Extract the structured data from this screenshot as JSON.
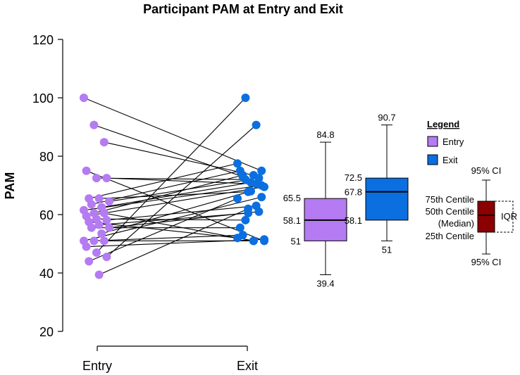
{
  "chart_data": {
    "type": "scatter",
    "title": "Participant PAM at Entry and Exit",
    "ylabel": "PAM",
    "xlabel": "",
    "ylim": [
      20,
      120
    ],
    "yticks": [
      20,
      40,
      60,
      80,
      100,
      120
    ],
    "categories": [
      "Entry",
      "Exit"
    ],
    "colors": {
      "entry": "#b57bf2",
      "exit": "#0b6fe0",
      "key": "#8b0000",
      "line": "#000000"
    },
    "pairs": [
      [
        100,
        75
      ],
      [
        90.7,
        73
      ],
      [
        84.8,
        73.5
      ],
      [
        75,
        51
      ],
      [
        72.5,
        72
      ],
      [
        72.5,
        70.5
      ],
      [
        65.5,
        77.5
      ],
      [
        65.5,
        67.8
      ],
      [
        64.5,
        72.5
      ],
      [
        63.5,
        75
      ],
      [
        62.5,
        71
      ],
      [
        61.5,
        70
      ],
      [
        60.5,
        73.5
      ],
      [
        60.5,
        51
      ],
      [
        59.5,
        69.5
      ],
      [
        58.5,
        58.1
      ],
      [
        58.1,
        63
      ],
      [
        57.5,
        52
      ],
      [
        56.5,
        60.5
      ],
      [
        55.5,
        61
      ],
      [
        55.5,
        55.5
      ],
      [
        53.5,
        68
      ],
      [
        51,
        66
      ],
      [
        51,
        53
      ],
      [
        51,
        51
      ],
      [
        49,
        51.5
      ],
      [
        47,
        100
      ],
      [
        45.5,
        90.7
      ],
      [
        44,
        65.5
      ],
      [
        39.4,
        62
      ]
    ],
    "boxes": [
      {
        "name": "Entry",
        "min": 39.4,
        "q1": 51,
        "median": 58.1,
        "q3": 65.5,
        "max": 84.8,
        "labels": {
          "max": "84.8",
          "q3": "65.5",
          "median": "58.1",
          "q1": "51",
          "min": "39.4"
        }
      },
      {
        "name": "Exit",
        "min": 51,
        "q1": 58.1,
        "median": 67.8,
        "q3": 72.5,
        "max": 90.7,
        "labels": {
          "max": "90.7",
          "q3": "72.5",
          "median": "67.8",
          "q1": "58.1",
          "min": "51"
        }
      }
    ],
    "legend": {
      "title": "Legend",
      "items": [
        {
          "label": "Entry",
          "color": "#b57bf2"
        },
        {
          "label": "Exit",
          "color": "#0b6fe0"
        }
      ]
    },
    "key": {
      "upper": "95% CI",
      "q3": "75th Centile",
      "median1": "50th Centile",
      "median2": "(Median)",
      "q1": "25th Centile",
      "lower": "95% CI",
      "iqr": "IQR"
    }
  }
}
